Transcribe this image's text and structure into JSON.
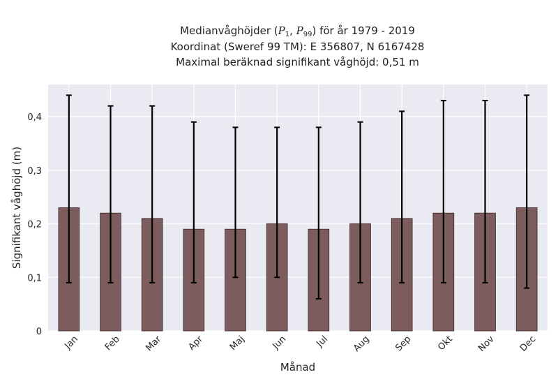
{
  "chart_data": {
    "type": "bar",
    "title_lines": {
      "prefix": "Medianvåghöjder (",
      "p_low": "P",
      "p_low_sub": "1",
      "sep": ", ",
      "p_high": "P",
      "p_high_sub": "99",
      "suffix": ") för år 1979 - 2019",
      "line2": "Koordinat (Sweref 99 TM): E 356807, N 6167428",
      "line3": "Maximal beräknad signifikant våghöjd: 0,51 m"
    },
    "xlabel": "Månad",
    "ylabel": "Signifikant våghöjd (m)",
    "ylim": [
      0,
      0.46
    ],
    "yticks": [
      0,
      0.1,
      0.2,
      0.3,
      0.4
    ],
    "ytick_labels": [
      "0",
      "0,1",
      "0,2",
      "0,3",
      "0,4"
    ],
    "categories": [
      "Jan",
      "Feb",
      "Mar",
      "Apr",
      "Maj",
      "Jun",
      "Jul",
      "Aug",
      "Sep",
      "Okt",
      "Nov",
      "Dec"
    ],
    "values": [
      0.23,
      0.22,
      0.21,
      0.19,
      0.19,
      0.2,
      0.19,
      0.2,
      0.21,
      0.22,
      0.22,
      0.23
    ],
    "error_low": [
      0.09,
      0.09,
      0.09,
      0.09,
      0.1,
      0.1,
      0.06,
      0.09,
      0.09,
      0.09,
      0.09,
      0.08
    ],
    "error_high": [
      0.44,
      0.42,
      0.42,
      0.39,
      0.38,
      0.38,
      0.38,
      0.39,
      0.41,
      0.43,
      0.43,
      0.44
    ],
    "grid": true,
    "colors": {
      "bar": "#7c5c5c",
      "bar_edge": "#3a2828",
      "error": "#000000",
      "plot_bg": "#eaeaf2",
      "grid": "#ffffff"
    }
  }
}
